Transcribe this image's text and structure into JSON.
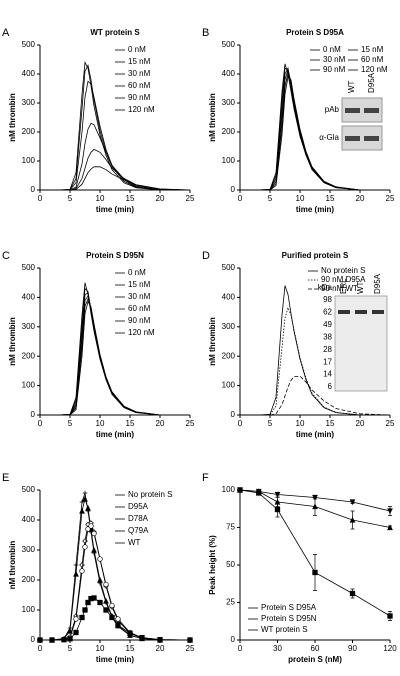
{
  "chart_data": [
    {
      "type": "line",
      "panel_label": "A",
      "title": "WT protein S",
      "xlabel": "time (min)",
      "ylabel": "nM thrombin",
      "x": [
        0,
        3,
        5,
        6,
        7,
        7.5,
        8,
        8.5,
        9,
        10,
        11,
        12,
        14,
        16,
        20,
        25
      ],
      "xlim": [
        0,
        25
      ],
      "xticks": [
        0,
        5,
        10,
        15,
        20,
        25
      ],
      "ylim": [
        0,
        500
      ],
      "yticks": [
        0,
        100,
        200,
        300,
        400,
        500
      ],
      "legend_columns": 1,
      "series": [
        {
          "name": "0 nM",
          "color": "#000000",
          "values": [
            0,
            0,
            2,
            60,
            330,
            440,
            420,
            360,
            290,
            190,
            120,
            70,
            25,
            8,
            0,
            0
          ]
        },
        {
          "name": "15 nM",
          "color": "#000000",
          "values": [
            0,
            0,
            1,
            40,
            280,
            410,
            430,
            380,
            310,
            205,
            130,
            80,
            30,
            10,
            0,
            0
          ]
        },
        {
          "name": "30 nM",
          "color": "#000000",
          "values": [
            0,
            0,
            1,
            25,
            200,
            320,
            375,
            365,
            320,
            220,
            140,
            85,
            35,
            12,
            0,
            0
          ]
        },
        {
          "name": "60 nM",
          "color": "#000000",
          "values": [
            0,
            0,
            0,
            10,
            90,
            160,
            210,
            230,
            225,
            180,
            130,
            85,
            38,
            15,
            2,
            0
          ]
        },
        {
          "name": "90 nM",
          "color": "#000000",
          "values": [
            0,
            0,
            0,
            5,
            40,
            75,
            110,
            130,
            140,
            130,
            105,
            75,
            40,
            18,
            3,
            0
          ]
        },
        {
          "name": "120 nM",
          "color": "#000000",
          "values": [
            0,
            0,
            0,
            2,
            20,
            40,
            60,
            72,
            80,
            80,
            70,
            55,
            35,
            18,
            4,
            0
          ]
        }
      ]
    },
    {
      "type": "line",
      "panel_label": "B",
      "title": "Protein S D95A",
      "xlabel": "time (min)",
      "ylabel": "nM thrombin",
      "x": [
        0,
        3,
        5,
        6,
        7,
        7.5,
        8,
        8.5,
        9,
        10,
        11,
        12,
        14,
        16,
        20,
        25
      ],
      "xlim": [
        0,
        25
      ],
      "xticks": [
        0,
        5,
        10,
        15,
        20,
        25
      ],
      "ylim": [
        0,
        500
      ],
      "yticks": [
        0,
        100,
        200,
        300,
        400,
        500
      ],
      "legend_columns": 2,
      "inset": {
        "kind": "blot",
        "lanes": [
          "WT",
          "D95A"
        ],
        "rows": [
          "pAb",
          "α-Gla"
        ]
      },
      "series": [
        {
          "name": "0 nM",
          "color": "#000000",
          "values": [
            0,
            0,
            2,
            60,
            340,
            435,
            400,
            340,
            280,
            185,
            120,
            70,
            25,
            8,
            0,
            0
          ]
        },
        {
          "name": "15 nM",
          "color": "#000000",
          "values": [
            0,
            0,
            2,
            50,
            310,
            420,
            415,
            355,
            290,
            190,
            122,
            72,
            26,
            9,
            0,
            0
          ]
        },
        {
          "name": "30 nM",
          "color": "#000000",
          "values": [
            0,
            0,
            1,
            40,
            280,
            400,
            420,
            365,
            300,
            195,
            125,
            74,
            27,
            9,
            0,
            0
          ]
        },
        {
          "name": "60 nM",
          "color": "#000000",
          "values": [
            0,
            0,
            1,
            30,
            250,
            380,
            415,
            370,
            305,
            200,
            128,
            76,
            28,
            10,
            0,
            0
          ]
        },
        {
          "name": "90 nM",
          "color": "#000000",
          "values": [
            0,
            0,
            1,
            22,
            220,
            355,
            405,
            375,
            310,
            205,
            130,
            78,
            29,
            10,
            0,
            0
          ]
        },
        {
          "name": "120 nM",
          "color": "#000000",
          "values": [
            0,
            0,
            0,
            15,
            190,
            330,
            390,
            380,
            315,
            210,
            133,
            80,
            30,
            11,
            0,
            0
          ]
        }
      ]
    },
    {
      "type": "line",
      "panel_label": "C",
      "title": "Protein S D95N",
      "xlabel": "time (min)",
      "ylabel": "nM thrombin",
      "x": [
        0,
        3,
        5,
        6,
        7,
        7.5,
        8,
        8.5,
        9,
        10,
        11,
        12,
        14,
        16,
        20,
        25
      ],
      "xlim": [
        0,
        25
      ],
      "xticks": [
        0,
        5,
        10,
        15,
        20,
        25
      ],
      "ylim": [
        0,
        500
      ],
      "yticks": [
        0,
        100,
        200,
        300,
        400,
        500
      ],
      "legend_columns": 1,
      "series": [
        {
          "name": "0 nM",
          "color": "#000000",
          "values": [
            0,
            0,
            2,
            60,
            340,
            450,
            410,
            345,
            285,
            190,
            120,
            70,
            25,
            8,
            0,
            0
          ]
        },
        {
          "name": "15 nM",
          "color": "#000000",
          "values": [
            0,
            0,
            2,
            50,
            310,
            430,
            420,
            355,
            290,
            192,
            122,
            72,
            26,
            9,
            0,
            0
          ]
        },
        {
          "name": "30 nM",
          "color": "#000000",
          "values": [
            0,
            0,
            1,
            40,
            280,
            410,
            415,
            360,
            295,
            195,
            124,
            73,
            27,
            9,
            0,
            0
          ]
        },
        {
          "name": "60 nM",
          "color": "#000000",
          "values": [
            0,
            0,
            1,
            32,
            255,
            390,
            405,
            362,
            300,
            198,
            126,
            75,
            28,
            10,
            0,
            0
          ]
        },
        {
          "name": "90 nM",
          "color": "#000000",
          "values": [
            0,
            0,
            1,
            25,
            230,
            370,
            395,
            365,
            305,
            202,
            128,
            77,
            29,
            10,
            0,
            0
          ]
        },
        {
          "name": "120 nM",
          "color": "#000000",
          "values": [
            0,
            0,
            0,
            18,
            200,
            345,
            385,
            368,
            310,
            206,
            130,
            79,
            30,
            11,
            0,
            0
          ]
        }
      ]
    },
    {
      "type": "line",
      "panel_label": "D",
      "title": "Purified protein S",
      "xlabel": "time (min)",
      "ylabel": "nM thrombin",
      "x": [
        0,
        3,
        5,
        6,
        7,
        7.5,
        8,
        8.5,
        9,
        10,
        11,
        12,
        14,
        16,
        20,
        25
      ],
      "xlim": [
        0,
        25
      ],
      "xticks": [
        0,
        5,
        10,
        15,
        20,
        25
      ],
      "ylim": [
        0,
        500
      ],
      "yticks": [
        0,
        100,
        200,
        300,
        400,
        500
      ],
      "legend_columns": 1,
      "inset": {
        "kind": "gel",
        "unit": "kDa",
        "markers": [
          "98",
          "62",
          "49",
          "38",
          "28",
          "17",
          "14",
          "6"
        ],
        "lanes": [
          "ERL",
          "WT",
          "D95A"
        ]
      },
      "series": [
        {
          "name": "No protein S",
          "color": "#000000",
          "style": "solid",
          "values": [
            0,
            0,
            2,
            60,
            340,
            440,
            410,
            345,
            285,
            190,
            120,
            70,
            25,
            8,
            0,
            0
          ]
        },
        {
          "name": "90 nM D95A",
          "color": "#000000",
          "style": "dotted",
          "values": [
            0,
            0,
            1,
            30,
            230,
            330,
            365,
            340,
            290,
            195,
            125,
            74,
            27,
            9,
            0,
            0
          ]
        },
        {
          "name": "90 nM WT",
          "color": "#000000",
          "style": "dashed",
          "values": [
            0,
            0,
            0,
            4,
            35,
            65,
            95,
            118,
            130,
            132,
            112,
            85,
            48,
            22,
            4,
            0
          ]
        }
      ]
    },
    {
      "type": "line",
      "panel_label": "E",
      "xlabel": "time (min)",
      "ylabel": "nM thrombin",
      "x": [
        0,
        2,
        4,
        5,
        6,
        7,
        7.5,
        8,
        8.5,
        9,
        10,
        11,
        12,
        13,
        15,
        17,
        20,
        25
      ],
      "xlim": [
        0,
        25
      ],
      "xticks": [
        0,
        5,
        10,
        15,
        20,
        25
      ],
      "ylim": [
        0,
        500
      ],
      "yticks": [
        0,
        100,
        200,
        300,
        400,
        500
      ],
      "legend_columns": 1,
      "series": [
        {
          "name": "No protein S",
          "color": "#000000",
          "marker": "plus",
          "values": [
            0,
            0,
            5,
            40,
            250,
            460,
            490,
            430,
            360,
            290,
            190,
            125,
            75,
            45,
            15,
            5,
            0,
            0
          ]
        },
        {
          "name": "D95A",
          "color": "#000000",
          "marker": "triangle",
          "values": [
            0,
            0,
            4,
            30,
            220,
            430,
            470,
            440,
            370,
            300,
            200,
            130,
            80,
            48,
            16,
            5,
            0,
            0
          ]
        },
        {
          "name": "D78A",
          "color": "#000000",
          "marker": "diamond",
          "values": [
            0,
            0,
            2,
            10,
            80,
            250,
            330,
            385,
            390,
            360,
            270,
            180,
            110,
            65,
            22,
            7,
            1,
            0
          ]
        },
        {
          "name": "Q79A",
          "color": "#000000",
          "marker": "circle",
          "values": [
            0,
            0,
            2,
            8,
            70,
            230,
            310,
            370,
            380,
            355,
            270,
            185,
            115,
            70,
            25,
            8,
            1,
            0
          ]
        },
        {
          "name": "WT",
          "color": "#000000",
          "marker": "square",
          "values": [
            0,
            0,
            1,
            4,
            25,
            75,
            100,
            125,
            138,
            140,
            125,
            100,
            75,
            50,
            22,
            8,
            1,
            0
          ]
        }
      ]
    },
    {
      "type": "errorbar",
      "panel_label": "F",
      "xlabel": "protein S (nM)",
      "ylabel": "Peak height (%)",
      "x": [
        0,
        15,
        30,
        60,
        90,
        120
      ],
      "xlim": [
        0,
        120
      ],
      "xticks": [
        0,
        30,
        60,
        90,
        120
      ],
      "ylim": [
        0,
        100
      ],
      "yticks": [
        0,
        25,
        50,
        75,
        100
      ],
      "legend_columns": 1,
      "series": [
        {
          "name": "Protein S D95A",
          "color": "#000000",
          "marker": "triangle-down",
          "values": [
            100,
            99,
            97,
            95,
            92,
            86
          ],
          "errors": [
            0,
            0,
            1,
            1,
            1,
            3
          ]
        },
        {
          "name": "Protein S D95N",
          "color": "#000000",
          "marker": "triangle",
          "values": [
            100,
            99,
            92,
            89,
            80,
            75
          ],
          "errors": [
            0,
            1,
            3,
            6,
            6,
            1
          ]
        },
        {
          "name": "WT protein S",
          "color": "#000000",
          "marker": "square",
          "values": [
            100,
            98,
            87,
            45,
            31,
            16
          ],
          "errors": [
            1,
            1,
            5,
            12,
            3,
            3
          ]
        }
      ]
    }
  ]
}
